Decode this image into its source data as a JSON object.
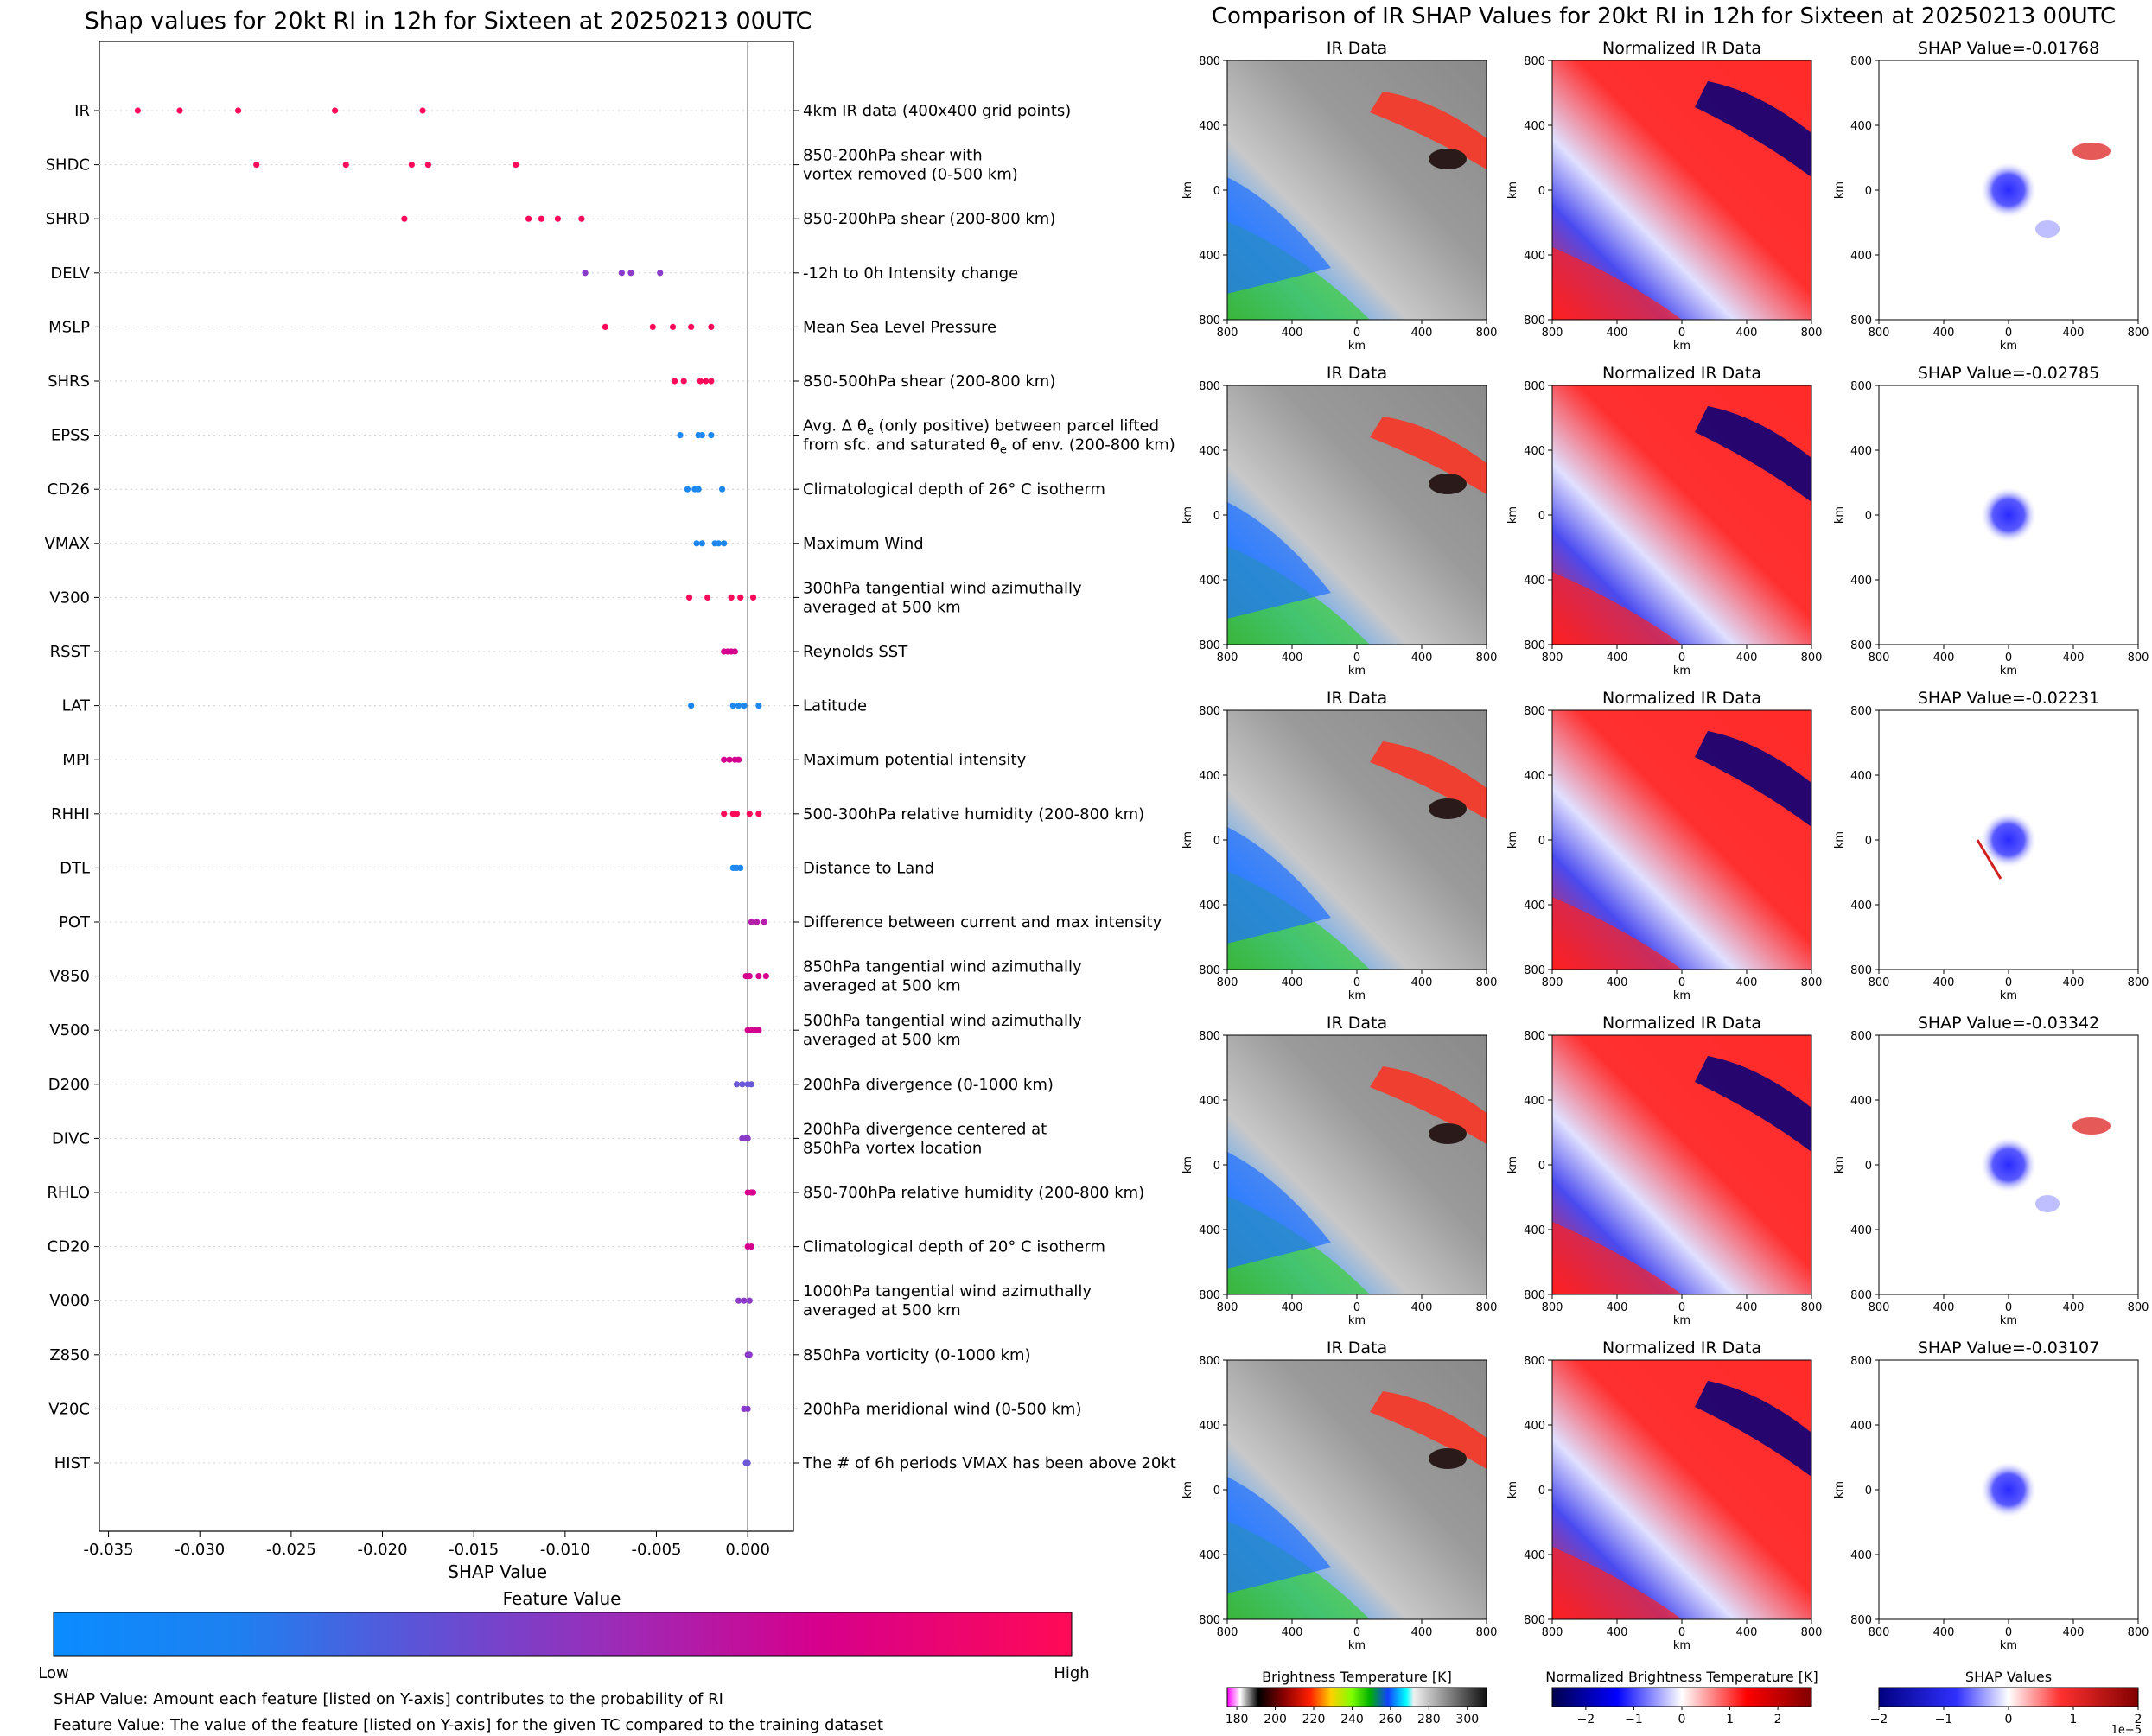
{
  "chart_data": [
    {
      "type": "scatter",
      "title": "Shap values for 20kt RI in 12h for Sixteen at 20250213 00UTC",
      "xlabel": "SHAP Value",
      "xlim": [
        -0.0355,
        0.0025
      ],
      "xticks": [
        -0.035,
        -0.03,
        -0.025,
        -0.02,
        -0.015,
        -0.01,
        -0.005,
        0.0
      ],
      "xtick_labels": [
        "-0.035",
        "-0.030",
        "-0.025",
        "-0.020",
        "-0.015",
        "-0.010",
        "-0.005",
        "0.000"
      ],
      "grid": "horizontal dotted",
      "features": [
        {
          "name": "IR",
          "desc": "4km IR data (400x400 grid points)",
          "color": "#ff0a5a",
          "points": [
            -0.0334,
            -0.0311,
            -0.0279,
            -0.0226,
            -0.0178
          ]
        },
        {
          "name": "SHDC",
          "desc": "850-200hPa shear with\nvortex removed (0-500 km)",
          "color": "#ff0a5a",
          "points": [
            -0.0269,
            -0.022,
            -0.0184,
            -0.0175,
            -0.0127
          ]
        },
        {
          "name": "SHRD",
          "desc": "850-200hPa shear (200-800 km)",
          "color": "#ff0a5a",
          "points": [
            -0.0188,
            -0.012,
            -0.0113,
            -0.0104,
            -0.0091
          ]
        },
        {
          "name": "DELV",
          "desc": "-12h to 0h Intensity change",
          "color": "#8a3cc8",
          "points": [
            -0.0089,
            -0.0069,
            -0.0064,
            -0.0048
          ]
        },
        {
          "name": "MSLP",
          "desc": "Mean Sea Level Pressure",
          "color": "#ff0a5a",
          "points": [
            -0.0078,
            -0.0052,
            -0.0041,
            -0.0031,
            -0.002
          ]
        },
        {
          "name": "SHRS",
          "desc": "850-500hPa shear (200-800 km)",
          "color": "#ff0a5a",
          "points": [
            -0.004,
            -0.0035,
            -0.0026,
            -0.0023,
            -0.002
          ]
        },
        {
          "name": "EPSS",
          "desc": "Avg. Δ θe (only positive) between parcel lifted\nfrom sfc. and saturated θe of env. (200-800 km)",
          "color": "#1e88f0",
          "points": [
            -0.0037,
            -0.0027,
            -0.0025,
            -0.002
          ]
        },
        {
          "name": "CD26",
          "desc": "Climatological depth of 26° C isotherm",
          "color": "#1e88f0",
          "points": [
            -0.0033,
            -0.0029,
            -0.0027,
            -0.0014
          ]
        },
        {
          "name": "VMAX",
          "desc": "Maximum Wind",
          "color": "#1e88f0",
          "points": [
            -0.0028,
            -0.0025,
            -0.0018,
            -0.0016,
            -0.0013
          ]
        },
        {
          "name": "V300",
          "desc": "300hPa tangential wind azimuthally\naveraged at 500 km",
          "color": "#ff0a5a",
          "points": [
            -0.0032,
            -0.0022,
            -0.0009,
            -0.0004,
            0.0003
          ]
        },
        {
          "name": "RSST",
          "desc": "Reynolds SST",
          "color": "#d4008e",
          "points": [
            -0.0013,
            -0.0011,
            -0.0009,
            -0.0007
          ]
        },
        {
          "name": "LAT",
          "desc": "Latitude",
          "color": "#1e88f0",
          "points": [
            -0.0031,
            -0.0008,
            -0.0005,
            -0.0002,
            0.0006
          ]
        },
        {
          "name": "MPI",
          "desc": "Maximum potential intensity",
          "color": "#d4008e",
          "points": [
            -0.0013,
            -0.001,
            -0.0007,
            -0.0005
          ]
        },
        {
          "name": "RHHI",
          "desc": "500-300hPa relative humidity (200-800 km)",
          "color": "#ff0a5a",
          "points": [
            -0.0013,
            -0.0008,
            -0.0006,
            0.0001,
            0.0006
          ]
        },
        {
          "name": "DTL",
          "desc": "Distance to Land",
          "color": "#1e88f0",
          "points": [
            -0.0008,
            -0.0006,
            -0.0004
          ]
        },
        {
          "name": "POT",
          "desc": "Difference between current and max intensity",
          "color": "#b41eaa",
          "points": [
            0.0002,
            0.0005,
            0.0009
          ]
        },
        {
          "name": "V850",
          "desc": "850hPa tangential wind azimuthally\naveraged at 500 km",
          "color": "#d4008e",
          "points": [
            -0.0001,
            0.0001,
            0.0006,
            0.001
          ]
        },
        {
          "name": "V500",
          "desc": "500hPa tangential wind azimuthally\naveraged at 500 km",
          "color": "#d4008e",
          "points": [
            0.0,
            0.0002,
            0.0004,
            0.0006
          ]
        },
        {
          "name": "D200",
          "desc": "200hPa divergence (0-1000 km)",
          "color": "#6a5ad8",
          "points": [
            -0.0006,
            -0.0003,
            0.0,
            0.0002
          ]
        },
        {
          "name": "DIVC",
          "desc": "200hPa divergence centered at\n850hPa vortex location",
          "color": "#8a3cc8",
          "points": [
            -0.0003,
            -0.0001,
            0.0
          ]
        },
        {
          "name": "RHLO",
          "desc": "850-700hPa relative humidity (200-800 km)",
          "color": "#d4008e",
          "points": [
            0.0,
            0.0002,
            0.0003
          ]
        },
        {
          "name": "CD20",
          "desc": "Climatological depth of 20° C isotherm",
          "color": "#d4008e",
          "points": [
            0.0,
            0.0002
          ]
        },
        {
          "name": "V000",
          "desc": "1000hPa tangential wind azimuthally\naveraged at 500 km",
          "color": "#8a3cc8",
          "points": [
            -0.0005,
            -0.0002,
            0.0001
          ]
        },
        {
          "name": "Z850",
          "desc": "850hPa vorticity (0-1000 km)",
          "color": "#8a3cc8",
          "points": [
            0.0,
            0.0001
          ]
        },
        {
          "name": "V20C",
          "desc": "200hPa meridional wind (0-500 km)",
          "color": "#8a3cc8",
          "points": [
            -0.0002,
            0.0
          ]
        },
        {
          "name": "HIST",
          "desc": "The # of 6h periods VMAX has been above 20kt",
          "color": "#6a5ad8",
          "points": [
            -0.0001,
            0.0
          ]
        }
      ],
      "legend": {
        "title": "Feature Value",
        "low": "Low",
        "high": "High",
        "colors": [
          "#1e88f0",
          "#8a3cc8",
          "#ff0a5a"
        ]
      },
      "notes": [
        "SHAP Value: Amount each feature [listed on Y-axis] contributes to the probability of RI",
        "Feature Value: The value of the feature [listed on Y-axis] for the given TC compared to the training dataset"
      ]
    },
    {
      "type": "heatmap",
      "title": "Comparison of IR SHAP Values for 20kt RI in 12h for Sixteen at 20250213 00UTC",
      "columns": [
        "IR Data",
        "Normalized IR Data",
        "SHAP"
      ],
      "shap_values": [
        -0.01768,
        -0.02785,
        -0.02231,
        -0.03342,
        -0.03107
      ],
      "shap_title_prefix": "SHAP Value=",
      "axis_label": "km",
      "axis_ticks": [
        "800",
        "400",
        "0",
        "400",
        "800"
      ],
      "colorbars": [
        {
          "label": "Brightness Temperature [K]",
          "ticks": [
            "180",
            "200",
            "220",
            "240",
            "260",
            "280",
            "300"
          ],
          "range": [
            175,
            310
          ]
        },
        {
          "label": "Normalized Brightness Temperature [K]",
          "ticks": [
            "−2",
            "−1",
            "0",
            "1",
            "2"
          ],
          "range": [
            -2.7,
            2.7
          ]
        },
        {
          "label": "SHAP Values",
          "ticks": [
            "−2",
            "−1",
            "0",
            "1",
            "2"
          ],
          "range": [
            -2,
            2
          ],
          "exponent": "1e−5"
        }
      ]
    }
  ]
}
